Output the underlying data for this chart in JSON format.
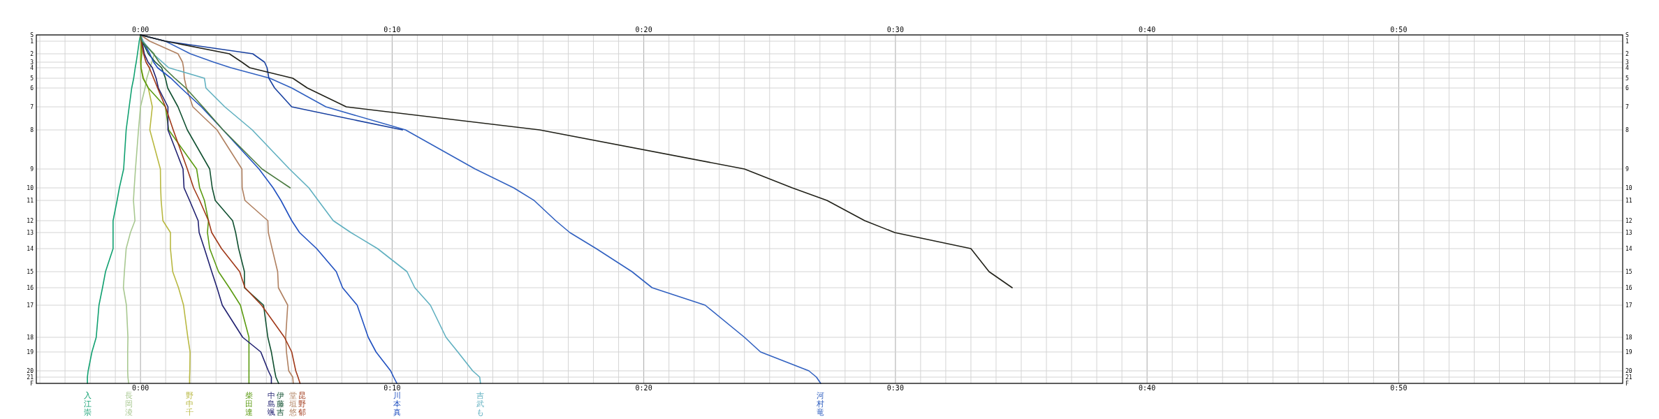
{
  "chart_data": {
    "type": "line",
    "orientation": "horizontal",
    "xlim": [
      -4.14,
      58.9
    ],
    "x2lim": [
      -4.14,
      58.9
    ],
    "categories": [
      "S",
      "1",
      "2",
      "3",
      "4",
      "5",
      "6",
      "7",
      "8",
      "9",
      "10",
      "11",
      "12",
      "13",
      "14",
      "15",
      "16",
      "17",
      "18",
      "19",
      "20",
      "21",
      "F"
    ],
    "xticks": [
      {
        "value": -4,
        "label": null
      },
      {
        "value": -3,
        "label": null
      },
      {
        "value": -2,
        "label": null
      },
      {
        "value": -1,
        "label": null
      },
      {
        "value": 0,
        "label": "0:00"
      },
      {
        "value": 1,
        "label": null
      },
      {
        "value": 2,
        "label": null
      },
      {
        "value": 3,
        "label": null
      },
      {
        "value": 4,
        "label": null
      },
      {
        "value": 5,
        "label": null
      },
      {
        "value": 6,
        "label": null
      },
      {
        "value": 7,
        "label": null
      },
      {
        "value": 8,
        "label": null
      },
      {
        "value": 9,
        "label": null
      },
      {
        "value": 10,
        "label": "0:10"
      },
      {
        "value": 11,
        "label": null
      },
      {
        "value": 12,
        "label": null
      },
      {
        "value": 13,
        "label": null
      },
      {
        "value": 14,
        "label": null
      },
      {
        "value": 15,
        "label": null
      },
      {
        "value": 16,
        "label": null
      },
      {
        "value": 17,
        "label": null
      },
      {
        "value": 18,
        "label": null
      },
      {
        "value": 19,
        "label": null
      },
      {
        "value": 20,
        "label": "0:20"
      },
      {
        "value": 21,
        "label": null
      },
      {
        "value": 22,
        "label": null
      },
      {
        "value": 23,
        "label": null
      },
      {
        "value": 24,
        "label": null
      },
      {
        "value": 25,
        "label": null
      },
      {
        "value": 26,
        "label": null
      },
      {
        "value": 27,
        "label": null
      },
      {
        "value": 28,
        "label": null
      },
      {
        "value": 29,
        "label": null
      },
      {
        "value": 30,
        "label": "0:30"
      },
      {
        "value": 31,
        "label": null
      },
      {
        "value": 32,
        "label": null
      },
      {
        "value": 33,
        "label": null
      },
      {
        "value": 34,
        "label": null
      },
      {
        "value": 35,
        "label": null
      },
      {
        "value": 36,
        "label": null
      },
      {
        "value": 37,
        "label": null
      },
      {
        "value": 38,
        "label": null
      },
      {
        "value": 39,
        "label": null
      },
      {
        "value": 40,
        "label": "0:40"
      },
      {
        "value": 41,
        "label": null
      },
      {
        "value": 42,
        "label": null
      },
      {
        "value": 43,
        "label": null
      },
      {
        "value": 44,
        "label": null
      },
      {
        "value": 45,
        "label": null
      },
      {
        "value": 46,
        "label": null
      },
      {
        "value": 47,
        "label": null
      },
      {
        "value": 48,
        "label": null
      },
      {
        "value": 49,
        "label": null
      },
      {
        "value": 50,
        "label": "0:50"
      },
      {
        "value": 51,
        "label": null
      },
      {
        "value": 52,
        "label": null
      },
      {
        "value": 53,
        "label": null
      },
      {
        "value": 54,
        "label": null
      },
      {
        "value": 55,
        "label": null
      },
      {
        "value": 56,
        "label": null
      },
      {
        "value": 57,
        "label": null
      },
      {
        "value": 58,
        "label": null
      }
    ],
    "x2ticks": [
      {
        "value": 0,
        "label": "0:00"
      },
      {
        "value": 10,
        "label": "0:10"
      },
      {
        "value": 20,
        "label": "0:20"
      },
      {
        "value": 30,
        "label": "0:30"
      },
      {
        "value": 40,
        "label": "0:40"
      },
      {
        "value": 50,
        "label": "0:50"
      }
    ],
    "grid": true,
    "legend": false,
    "marker": "none",
    "line_style": "solid",
    "series": [
      {
        "name": "入江崇",
        "color": "#10a070",
        "values": [
          0,
          -0.05,
          -0.12,
          -0.17,
          -0.21,
          -0.27,
          -0.35,
          -0.45,
          -0.57,
          -0.67,
          -0.84,
          -0.93,
          -1.09,
          -1.09,
          -1.09,
          -1.39,
          -1.51,
          -1.65,
          -1.76,
          -1.93,
          -2.08,
          -2.11,
          -2.11
        ]
      },
      {
        "name": "長岡淩",
        "color": "#a8c890",
        "values": [
          0,
          0.05,
          0.55,
          0.45,
          0.38,
          0.25,
          0.18,
          0,
          -0.08,
          -0.2,
          -0.25,
          -0.28,
          -0.22,
          -0.4,
          -0.57,
          -0.64,
          -0.68,
          -0.56,
          -0.5,
          -0.51,
          -0.51,
          -0.5,
          -0.47
        ]
      },
      {
        "name": "野中千",
        "color": "#b8b840",
        "values": [
          0,
          0.02,
          0,
          0,
          0.02,
          0.12,
          0.31,
          0.47,
          0.37,
          0.79,
          0.8,
          0.82,
          0.89,
          1.19,
          1.19,
          1.28,
          1.51,
          1.71,
          1.88,
          1.97,
          1.96,
          1.95,
          1.95
        ]
      },
      {
        "name": "柴田達",
        "color": "#5a9a10",
        "values": [
          0,
          0.03,
          0.05,
          0.02,
          0.02,
          0.1,
          0.31,
          0.99,
          1.12,
          2.23,
          2.35,
          2.54,
          2.7,
          2.66,
          2.75,
          3.1,
          3.53,
          3.97,
          4.31,
          4.31,
          4.31,
          4.31,
          4.31
        ]
      },
      {
        "name": "中島颯",
        "color": "#202070",
        "values": [
          0,
          0.06,
          0.15,
          0.3,
          0.47,
          0.62,
          0.71,
          1.09,
          1.09,
          1.69,
          1.73,
          1.95,
          2.29,
          2.33,
          2.54,
          2.83,
          3.04,
          3.25,
          4.06,
          4.78,
          5.08,
          5.2,
          5.2
        ]
      },
      {
        "name": "伊藤吉",
        "color": "#105030",
        "values": [
          0,
          0.06,
          0.31,
          0.59,
          0.84,
          0.99,
          1.08,
          1.49,
          1.86,
          2.75,
          2.85,
          2.97,
          3.66,
          3.78,
          3.9,
          4.13,
          4.13,
          4.89,
          5.06,
          5.2,
          5.33,
          5.38,
          5.49
        ]
      },
      {
        "name": "堂垣悠",
        "color": "#b08060",
        "values": [
          0,
          0.37,
          1.49,
          1.67,
          1.71,
          1.74,
          1.83,
          2.08,
          3.04,
          4.03,
          4.04,
          4.15,
          5.06,
          5.08,
          5.23,
          5.45,
          5.48,
          5.85,
          5.77,
          5.8,
          5.89,
          6.05,
          6.07
        ]
      },
      {
        "name": "昆野郁",
        "color": "#a03818",
        "values": [
          0,
          0.03,
          0.12,
          0.22,
          0.35,
          0.52,
          0.68,
          0.99,
          1.3,
          1.86,
          2.11,
          2.35,
          2.7,
          2.83,
          3.22,
          3.94,
          4.15,
          4.81,
          5.72,
          6.01,
          6.17,
          6.26,
          6.34
        ]
      },
      {
        "name": "川本真",
        "color": "#2050c0",
        "values": [
          0,
          0.1,
          0.37,
          0.52,
          0.68,
          1.21,
          1.61,
          2.42,
          3.28,
          4.71,
          5.27,
          5.58,
          6.01,
          6.32,
          7,
          7.78,
          8.03,
          8.61,
          9.05,
          9.36,
          9.94,
          10.06,
          10.19
        ]
      },
      {
        "name": "吉武も",
        "color": "#60b0c0",
        "values": [
          0,
          0.1,
          0.5,
          0.87,
          1.12,
          2.54,
          2.6,
          3.35,
          4.44,
          5.92,
          6.69,
          7.06,
          7.66,
          8.36,
          9.42,
          10.59,
          10.9,
          11.52,
          12.14,
          12.61,
          13.2,
          13.48,
          13.51
        ]
      },
      {
        "name": "河村竜",
        "color": "#3060c0",
        "values": [
          0,
          0.99,
          1.98,
          2.91,
          3.59,
          5.14,
          6.01,
          7.37,
          10.53,
          13.3,
          14.83,
          15.64,
          16.5,
          17.06,
          18.11,
          19.53,
          20.33,
          22.44,
          24,
          24.64,
          26.56,
          26.86,
          27.03
        ]
      },
      {
        "color": "#4a7a40",
        "values": [
          0,
          0.05,
          0.52,
          0.74,
          0.93,
          1.36,
          1.8,
          2.48,
          3.28,
          4.83,
          5.95,
          null,
          null,
          null,
          null,
          null,
          null,
          null,
          null,
          null,
          null,
          null,
          null
        ]
      },
      {
        "color": "#1840a0",
        "values": [
          0,
          0.99,
          4.46,
          4.93,
          5.03,
          5.1,
          5.33,
          6.01,
          10.41,
          null,
          null,
          null,
          null,
          null,
          null,
          null,
          null,
          null,
          null,
          null,
          null,
          null,
          null
        ]
      },
      {
        "color": "#202018",
        "values": [
          0,
          0.99,
          3.53,
          4.03,
          4.34,
          6.05,
          6.63,
          8.18,
          15.86,
          24,
          25.9,
          27.28,
          28.78,
          29.97,
          33,
          33.72,
          34.64,
          null,
          null,
          null,
          null,
          null,
          null
        ]
      }
    ]
  }
}
